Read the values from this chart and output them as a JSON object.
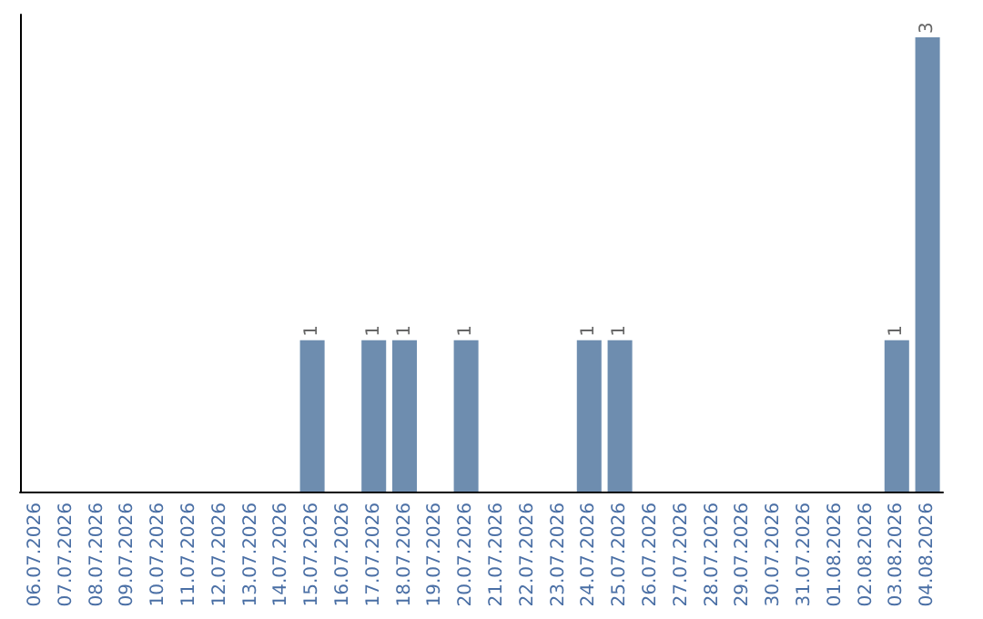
{
  "chart_data": {
    "type": "bar",
    "categories": [
      "06.07.2026",
      "07.07.2026",
      "08.07.2026",
      "09.07.2026",
      "10.07.2026",
      "11.07.2026",
      "12.07.2026",
      "13.07.2026",
      "14.07.2026",
      "15.07.2026",
      "16.07.2026",
      "17.07.2026",
      "18.07.2026",
      "19.07.2026",
      "20.07.2026",
      "21.07.2026",
      "22.07.2026",
      "23.07.2026",
      "24.07.2026",
      "25.07.2026",
      "26.07.2026",
      "27.07.2026",
      "28.07.2026",
      "29.07.2026",
      "30.07.2026",
      "31.07.2026",
      "01.08.2026",
      "02.08.2026",
      "03.08.2026",
      "04.08.2026"
    ],
    "values": [
      0,
      0,
      0,
      0,
      0,
      0,
      0,
      0,
      0,
      1,
      0,
      1,
      1,
      0,
      1,
      0,
      0,
      0,
      1,
      1,
      0,
      0,
      0,
      0,
      0,
      0,
      0,
      0,
      1,
      3
    ],
    "value_labels": [
      null,
      null,
      null,
      null,
      null,
      null,
      null,
      null,
      null,
      "1",
      null,
      "1",
      "1",
      null,
      "1",
      null,
      null,
      null,
      "1",
      "1",
      null,
      null,
      null,
      null,
      null,
      null,
      null,
      null,
      "1",
      "3"
    ],
    "color": "#6e8daf",
    "grid": false
  }
}
